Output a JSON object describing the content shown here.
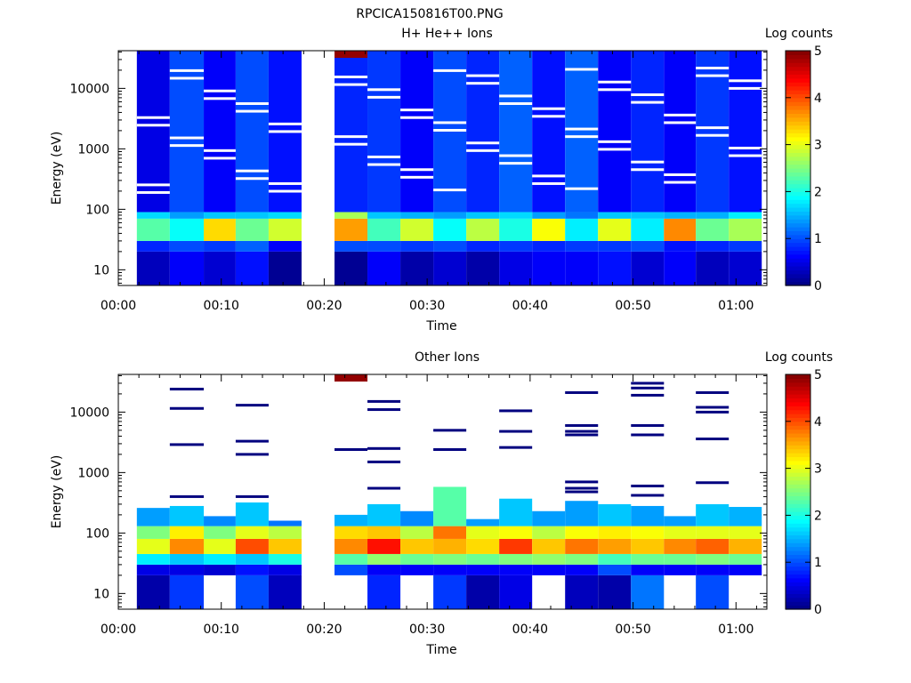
{
  "title": "RPCICA150816T00.PNG",
  "colormap": [
    "#00007f",
    "#0000ff",
    "#007fff",
    "#00ffff",
    "#7fff7f",
    "#ffff00",
    "#ff7f00",
    "#ff0000",
    "#7f0000"
  ],
  "chart_data": [
    {
      "type": "heatmap",
      "title": "H+ He++ Ions",
      "xlabel": "Time",
      "ylabel": "Energy (eV)",
      "y_scale": "log",
      "xlim_minutes": [
        0,
        63
      ],
      "ylim": [
        5.5,
        42000
      ],
      "x_ticks": [
        "00:00",
        "00:10",
        "00:20",
        "00:30",
        "00:40",
        "00:50",
        "01:00"
      ],
      "y_ticks": [
        "10",
        "100",
        "1000",
        "10000"
      ],
      "colorbar": {
        "label": "Log counts",
        "range": [
          0,
          5
        ],
        "ticks": [
          "0",
          "1",
          "2",
          "3",
          "4",
          "5"
        ]
      },
      "time_columns_minutes": [
        [
          1.8,
          5.0
        ],
        [
          5.0,
          8.3
        ],
        [
          8.3,
          11.4
        ],
        [
          11.4,
          14.6
        ],
        [
          14.6,
          17.8
        ],
        [
          21.0,
          24.2
        ],
        [
          24.2,
          27.4
        ],
        [
          27.4,
          30.6
        ],
        [
          30.6,
          33.8
        ],
        [
          33.8,
          37.0
        ],
        [
          37.0,
          40.2
        ],
        [
          40.2,
          43.4
        ],
        [
          43.4,
          46.6
        ],
        [
          46.6,
          49.8
        ],
        [
          49.8,
          53.0
        ],
        [
          53.0,
          56.1
        ],
        [
          56.1,
          59.3
        ],
        [
          59.3,
          62.5
        ]
      ],
      "energy_bands_eV": [
        {
          "range": [
            5.5,
            20
          ],
          "log_counts": [
            0.3,
            0.6,
            0.4,
            0.7,
            0.1,
            0.1,
            0.6,
            0.2,
            0.4,
            0.2,
            0.5,
            0.6,
            0.6,
            0.7,
            0.4,
            0.6,
            0.3,
            0.4
          ]
        },
        {
          "range": [
            20,
            30
          ],
          "log_counts": [
            0.8,
            1.0,
            0.9,
            1.1,
            0.6,
            1.0,
            1.0,
            0.9,
            1.0,
            0.8,
            0.9,
            0.8,
            0.9,
            0.9,
            1.0,
            0.7,
            0.8,
            0.9
          ]
        },
        {
          "range": [
            30,
            70
          ],
          "log_counts": [
            2.3,
            1.9,
            3.3,
            2.4,
            2.9,
            3.6,
            2.2,
            2.9,
            1.9,
            2.8,
            2.0,
            3.1,
            1.8,
            3.0,
            1.8,
            3.7,
            2.4,
            2.7
          ]
        },
        {
          "range": [
            70,
            90
          ],
          "log_counts": [
            1.7,
            1.4,
            1.6,
            1.6,
            1.7,
            2.7,
            1.6,
            1.5,
            1.4,
            1.6,
            1.7,
            1.4,
            1.2,
            1.6,
            1.6,
            1.5,
            1.5,
            1.8
          ]
        },
        {
          "range": [
            90,
            42000
          ],
          "log_counts": [
            0.5,
            1.0,
            0.6,
            1.0,
            0.7,
            0.8,
            0.9,
            0.6,
            1.0,
            0.8,
            1.1,
            0.7,
            1.1,
            0.6,
            0.8,
            0.6,
            0.9,
            0.7
          ]
        },
        {
          "range": [
            32000,
            42000
          ],
          "log_counts": [
            null,
            null,
            null,
            null,
            null,
            4.9,
            null,
            null,
            null,
            null,
            null,
            null,
            null,
            null,
            null,
            null,
            null,
            null
          ]
        }
      ]
    },
    {
      "type": "heatmap",
      "title": "Other Ions",
      "xlabel": "Time",
      "ylabel": "Energy (eV)",
      "y_scale": "log",
      "xlim_minutes": [
        0,
        63
      ],
      "ylim": [
        5.5,
        42000
      ],
      "x_ticks": [
        "00:00",
        "00:10",
        "00:20",
        "00:30",
        "00:40",
        "00:50",
        "01:00"
      ],
      "y_ticks": [
        "10",
        "100",
        "1000",
        "10000"
      ],
      "colorbar": {
        "label": "Log counts",
        "range": [
          0,
          5
        ],
        "ticks": [
          "0",
          "1",
          "2",
          "3",
          "4",
          "5"
        ]
      },
      "time_columns_minutes": [
        [
          1.8,
          5.0
        ],
        [
          5.0,
          8.3
        ],
        [
          8.3,
          11.4
        ],
        [
          11.4,
          14.6
        ],
        [
          14.6,
          17.8
        ],
        [
          21.0,
          24.2
        ],
        [
          24.2,
          27.4
        ],
        [
          27.4,
          30.6
        ],
        [
          30.6,
          33.8
        ],
        [
          33.8,
          37.0
        ],
        [
          37.0,
          40.2
        ],
        [
          40.2,
          43.4
        ],
        [
          43.4,
          46.6
        ],
        [
          46.6,
          49.8
        ],
        [
          49.8,
          53.0
        ],
        [
          53.0,
          56.1
        ],
        [
          56.1,
          59.3
        ],
        [
          59.3,
          62.5
        ]
      ],
      "column_max_energy_eV": [
        260,
        280,
        190,
        320,
        160,
        200,
        300,
        230,
        580,
        170,
        370,
        230,
        340,
        300,
        280,
        190,
        300,
        270
      ],
      "sparse_high_energy_lines_eV": [
        [],
        [
          24000,
          11500,
          2900,
          400
        ],
        [],
        [
          13000,
          3300,
          2000,
          400
        ],
        [],
        [
          2400
        ],
        [
          15000,
          11000,
          2500,
          1500,
          550
        ],
        [],
        [
          5000,
          2400
        ],
        [],
        [
          10500,
          4800,
          2600
        ],
        [],
        [
          21000,
          6000,
          4800,
          4200,
          700,
          550,
          480
        ],
        [],
        [
          30000,
          25000,
          19000,
          6000,
          4200,
          600,
          420
        ],
        [],
        [
          21000,
          12000,
          10000,
          3600,
          680
        ],
        []
      ],
      "energy_bands_eV": [
        {
          "range": [
            5.5,
            20
          ],
          "log_counts": [
            0.2,
            0.9,
            null,
            1.0,
            0.3,
            null,
            0.8,
            null,
            0.9,
            0.2,
            0.5,
            null,
            0.3,
            0.2,
            1.2,
            null,
            1.0,
            null
          ]
        },
        {
          "range": [
            20,
            30
          ],
          "log_counts": [
            0.5,
            0.5,
            0.4,
            0.7,
            0.5,
            1.0,
            0.6,
            0.6,
            0.6,
            0.6,
            0.6,
            0.6,
            0.6,
            1.0,
            0.6,
            0.6,
            0.6,
            0.6
          ]
        },
        {
          "range": [
            30,
            45
          ],
          "log_counts": [
            1.8,
            1.6,
            1.8,
            1.6,
            2.0,
            2.3,
            2.6,
            2.4,
            2.5,
            2.4,
            2.5,
            2.6,
            2.5,
            2.2,
            2.4,
            2.4,
            2.5,
            2.4
          ]
        },
        {
          "range": [
            45,
            80
          ],
          "log_counts": [
            3.0,
            3.7,
            3.0,
            4.0,
            3.4,
            3.7,
            4.3,
            3.4,
            3.5,
            3.3,
            4.1,
            3.4,
            3.8,
            3.6,
            3.4,
            3.7,
            3.9,
            3.5
          ]
        },
        {
          "range": [
            80,
            130
          ],
          "log_counts": [
            2.5,
            3.2,
            2.5,
            3.0,
            2.8,
            3.3,
            3.4,
            2.8,
            3.8,
            3.0,
            3.1,
            2.8,
            3.1,
            3.2,
            3.1,
            3.0,
            3.0,
            3.0
          ]
        },
        {
          "range": [
            130,
            600
          ],
          "log_counts": [
            1.4,
            1.6,
            1.3,
            1.6,
            1.2,
            1.5,
            1.6,
            1.3,
            2.3,
            1.4,
            1.6,
            1.4,
            1.4,
            1.6,
            1.4,
            1.4,
            1.6,
            1.5
          ]
        },
        {
          "range": [
            32000,
            42000
          ],
          "log_counts": [
            null,
            null,
            null,
            null,
            null,
            4.9,
            null,
            null,
            null,
            null,
            null,
            null,
            null,
            null,
            null,
            null,
            null,
            null
          ]
        }
      ]
    }
  ]
}
